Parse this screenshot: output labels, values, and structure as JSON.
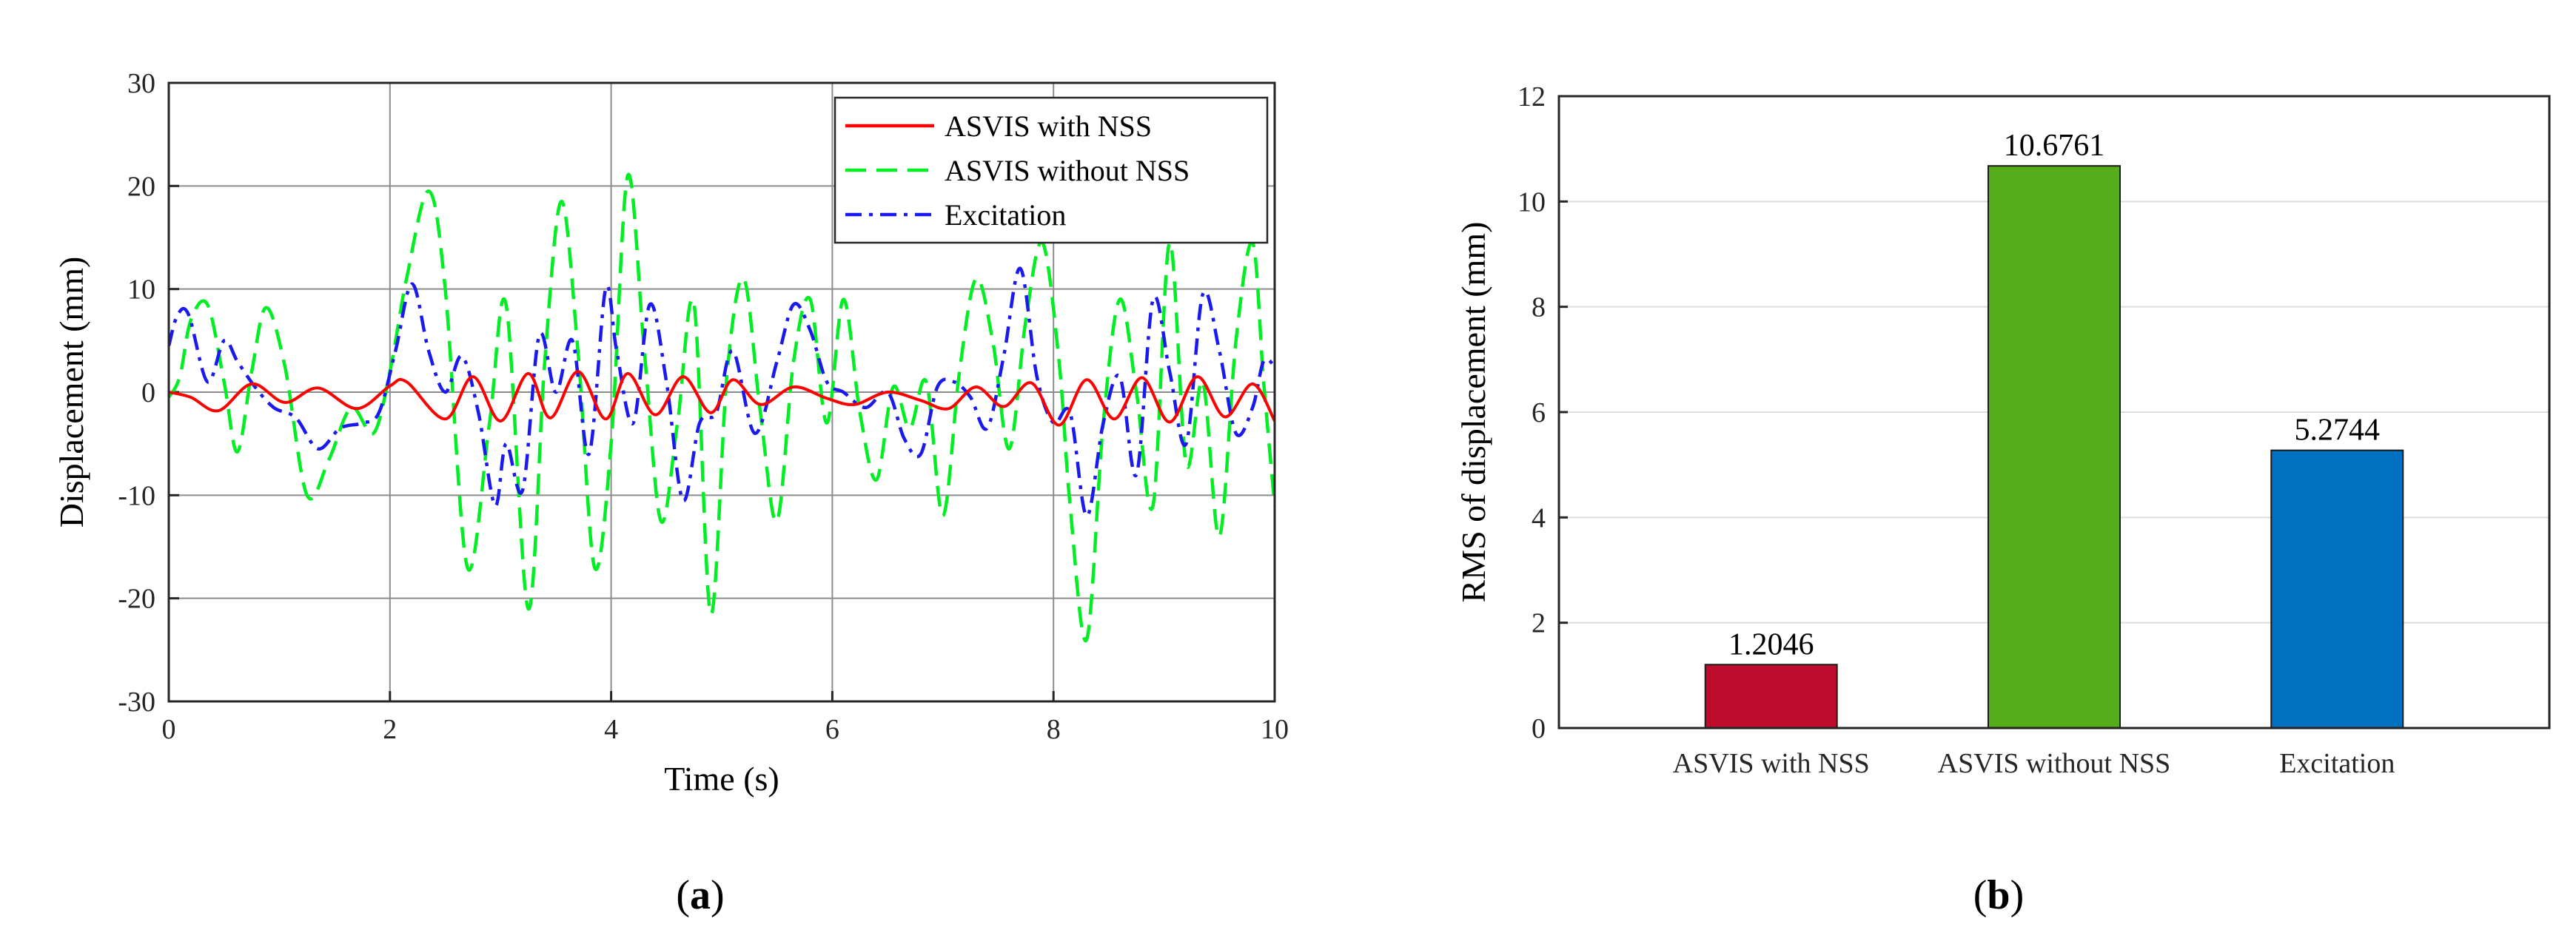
{
  "chart_data": [
    {
      "type": "line",
      "panel": "a",
      "xlabel": "Time (s)",
      "ylabel": "Displacement (mm)",
      "xlim": [
        0,
        10
      ],
      "ylim": [
        -30,
        30
      ],
      "xticks": [
        "0",
        "2",
        "4",
        "6",
        "8",
        "10"
      ],
      "yticks": [
        "-30",
        "-20",
        "-10",
        "0",
        "10",
        "20",
        "30"
      ],
      "grid": true,
      "legend_position": "top-right",
      "series": [
        {
          "name": "ASVIS with NSS",
          "color": "#ff0000",
          "style": "solid",
          "x": [
            0,
            0.2,
            0.45,
            0.75,
            1.05,
            1.35,
            1.7,
            2.0,
            2.15,
            2.5,
            2.75,
            3.0,
            3.25,
            3.45,
            3.7,
            3.95,
            4.15,
            4.4,
            4.65,
            4.9,
            5.1,
            5.35,
            5.65,
            5.95,
            6.2,
            6.5,
            6.8,
            7.05,
            7.3,
            7.55,
            7.8,
            8.05,
            8.3,
            8.55,
            8.8,
            9.05,
            9.3,
            9.55,
            9.8,
            10.0
          ],
          "y": [
            0,
            -0.5,
            -1.8,
            0.8,
            -1.0,
            0.4,
            -1.6,
            0.6,
            1.0,
            -2.6,
            1.5,
            -2.8,
            1.8,
            -2.5,
            2.0,
            -2.6,
            1.8,
            -2.2,
            1.5,
            -2.0,
            1.2,
            -1.2,
            0.5,
            -0.6,
            -1.2,
            0.0,
            -0.8,
            -1.6,
            0.5,
            -1.4,
            0.9,
            -3.2,
            1.2,
            -2.6,
            1.4,
            -2.9,
            1.5,
            -2.4,
            0.8,
            -2.8
          ]
        },
        {
          "name": "ASVIS without NSS",
          "color": "#00ee22",
          "style": "dashed",
          "x": [
            0,
            0.1,
            0.2,
            0.35,
            0.5,
            0.62,
            0.75,
            0.88,
            1.05,
            1.25,
            1.45,
            1.65,
            1.85,
            2.0,
            2.15,
            2.35,
            2.5,
            2.7,
            2.9,
            3.05,
            3.25,
            3.4,
            3.55,
            3.7,
            3.85,
            4.0,
            4.15,
            4.3,
            4.45,
            4.6,
            4.75,
            4.9,
            5.05,
            5.2,
            5.35,
            5.5,
            5.65,
            5.8,
            5.95,
            6.1,
            6.25,
            6.4,
            6.55,
            6.7,
            6.85,
            7.0,
            7.15,
            7.3,
            7.45,
            7.6,
            7.75,
            7.9,
            8.05,
            8.15,
            8.3,
            8.45,
            8.6,
            8.75,
            8.9,
            9.05,
            9.2,
            9.35,
            9.5,
            9.65,
            9.8,
            9.9,
            10.0
          ],
          "y": [
            -0.5,
            1.5,
            7.0,
            8.5,
            1.0,
            -5.8,
            2.0,
            8.2,
            2.5,
            -10.0,
            -6.5,
            -1.5,
            -4.0,
            2.0,
            11.0,
            19.5,
            10.0,
            -17.0,
            -3.0,
            8.5,
            -21.0,
            3.0,
            18.5,
            4.0,
            -17.0,
            -5.0,
            21.0,
            4.0,
            -12.5,
            -3.0,
            8.5,
            -21.5,
            2.0,
            11.0,
            -2.0,
            -12.5,
            3.0,
            9.0,
            -3.0,
            9.0,
            -2.0,
            -8.5,
            0.5,
            -3.5,
            1.0,
            -12.0,
            2.0,
            11.0,
            5.0,
            -5.5,
            7.0,
            14.5,
            3.0,
            -11.0,
            -24.0,
            -3.0,
            9.0,
            0.0,
            -11.0,
            14.5,
            -7.0,
            1.0,
            -14.0,
            5.0,
            14.5,
            1.0,
            -11.0
          ]
        },
        {
          "name": "Excitation",
          "color": "#1a1aee",
          "style": "dashdot",
          "x": [
            0,
            0.08,
            0.18,
            0.35,
            0.5,
            0.62,
            0.78,
            0.95,
            1.15,
            1.35,
            1.55,
            1.75,
            1.9,
            2.05,
            2.2,
            2.35,
            2.5,
            2.65,
            2.8,
            2.95,
            3.05,
            3.2,
            3.35,
            3.5,
            3.65,
            3.8,
            3.95,
            4.05,
            4.2,
            4.35,
            4.5,
            4.65,
            4.8,
            4.95,
            5.1,
            5.3,
            5.5,
            5.65,
            5.8,
            5.95,
            6.1,
            6.3,
            6.5,
            6.65,
            6.8,
            6.95,
            7.1,
            7.25,
            7.4,
            7.55,
            7.7,
            7.85,
            8.0,
            8.15,
            8.3,
            8.45,
            8.6,
            8.75,
            8.9,
            9.05,
            9.2,
            9.35,
            9.5,
            9.65,
            9.8,
            9.9,
            10.0
          ],
          "y": [
            4.5,
            7.5,
            7.5,
            1.0,
            5.0,
            3.0,
            0.5,
            -1.5,
            -2.5,
            -5.5,
            -3.5,
            -3.0,
            -2.0,
            4.0,
            10.5,
            4.0,
            0.0,
            3.5,
            -2.0,
            -11.0,
            -5.0,
            -9.5,
            5.5,
            0.0,
            5.0,
            -6.0,
            10.0,
            4.0,
            -3.0,
            8.5,
            1.0,
            -10.5,
            -3.0,
            -2.0,
            4.0,
            -4.0,
            3.0,
            8.5,
            6.0,
            1.0,
            0.0,
            -1.5,
            0.0,
            -4.5,
            -6.0,
            0.5,
            1.0,
            -0.5,
            -3.5,
            3.5,
            12.0,
            1.5,
            -3.0,
            -2.0,
            -12.0,
            -3.0,
            1.5,
            -8.0,
            9.0,
            2.0,
            -5.0,
            9.5,
            4.0,
            -4.0,
            -1.5,
            3.0,
            2.5
          ]
        }
      ]
    },
    {
      "type": "bar",
      "panel": "b",
      "categories": [
        "ASVIS with NSS",
        "ASVIS without NSS",
        "Excitation"
      ],
      "values": [
        1.2046,
        10.6761,
        5.2744
      ],
      "value_labels": [
        "1.2046",
        "10.6761",
        "5.2744"
      ],
      "colors": [
        "#c00c2c",
        "#56ad1a",
        "#0070c0"
      ],
      "xlabel": "",
      "ylabel": "RMS of displacement (mm)",
      "ylim": [
        0,
        12
      ],
      "yticks": [
        "0",
        "2",
        "4",
        "6",
        "8",
        "10",
        "12"
      ],
      "grid": "horizontal"
    }
  ],
  "captions": {
    "a": "a",
    "b": "b"
  }
}
